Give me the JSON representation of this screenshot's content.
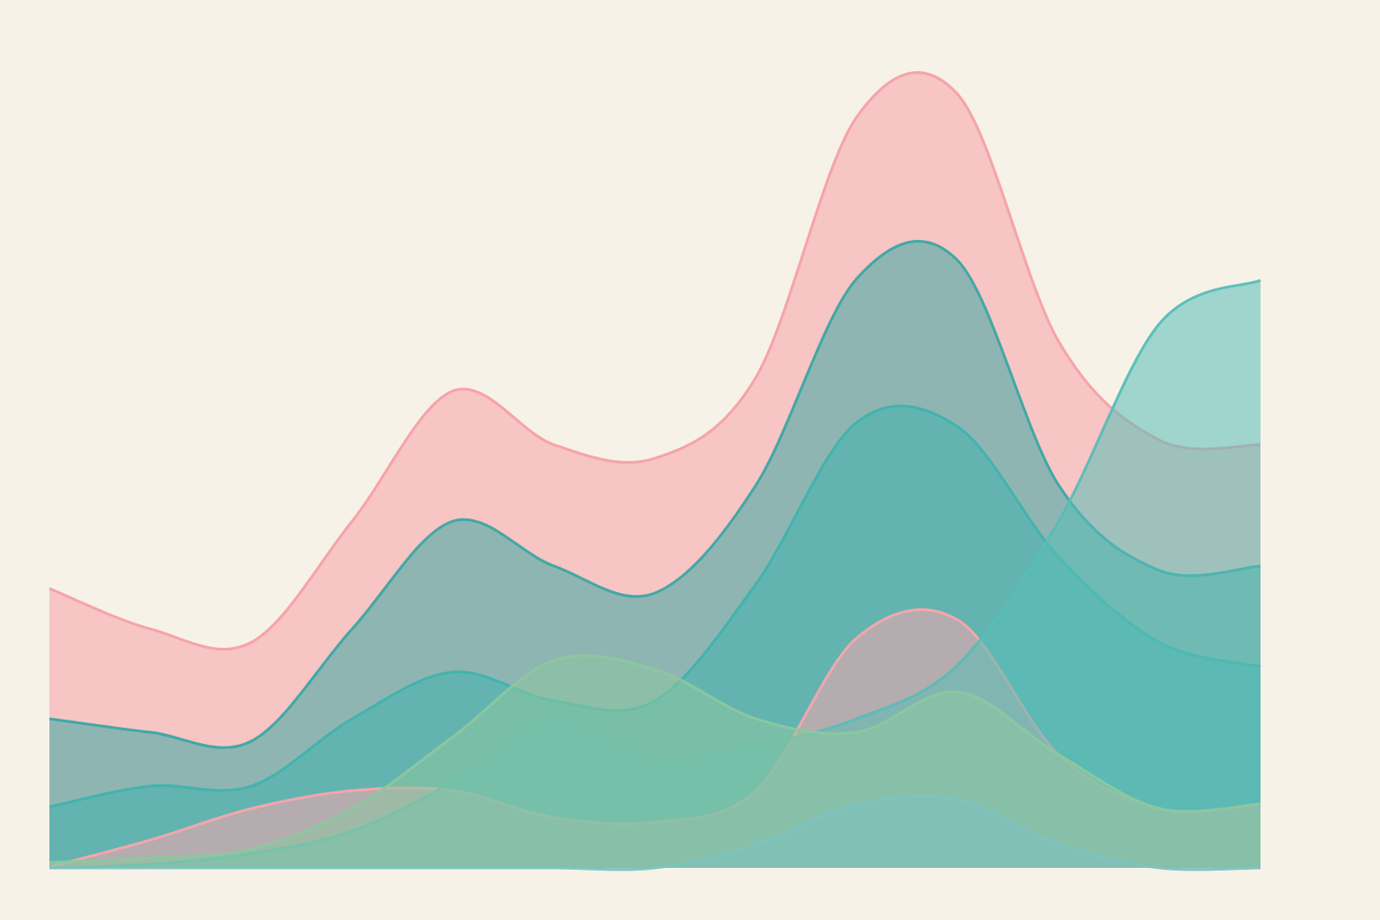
{
  "chart_data": {
    "type": "area",
    "x": [
      0,
      1,
      2,
      3,
      4,
      5,
      6,
      7,
      8,
      9,
      10,
      11,
      12
    ],
    "xlim": [
      0,
      12
    ],
    "ylim": [
      0,
      920
    ],
    "series": [
      {
        "color": "#f5a0a6",
        "values": [
          311,
          266,
          251,
          386,
          531,
          471,
          456,
          546,
          836,
          861,
          586,
          476,
          471
        ]
      },
      {
        "color": "#3aa8a4",
        "values": [
          166,
          151,
          141,
          266,
          386,
          336,
          306,
          426,
          656,
          676,
          426,
          331,
          336
        ]
      },
      {
        "color": "#3fb3ae",
        "values": [
          68,
          91,
          91,
          166,
          218,
          186,
          186,
          316,
          496,
          491,
          346,
          251,
          224
        ]
      },
      {
        "color": "#f7a6ad",
        "values": [
          1,
          31,
          66,
          86,
          86,
          56,
          51,
          86,
          256,
          276,
          126,
          66,
          71
        ]
      },
      {
        "color": "#58bdb7",
        "values": [
          0,
          4,
          16,
          41,
          96,
          166,
          121,
          136,
          166,
          226,
          386,
          606,
          654
        ]
      },
      {
        "color": "#8cc7a0",
        "values": [
          6,
          11,
          21,
          66,
          146,
          231,
          221,
          166,
          151,
          196,
          126,
          66,
          71
        ]
      },
      {
        "color": "#7cc3c0",
        "values": [
          0,
          0,
          0,
          0,
          0,
          0,
          0,
          26,
          71,
          76,
          26,
          0,
          0
        ]
      }
    ]
  }
}
